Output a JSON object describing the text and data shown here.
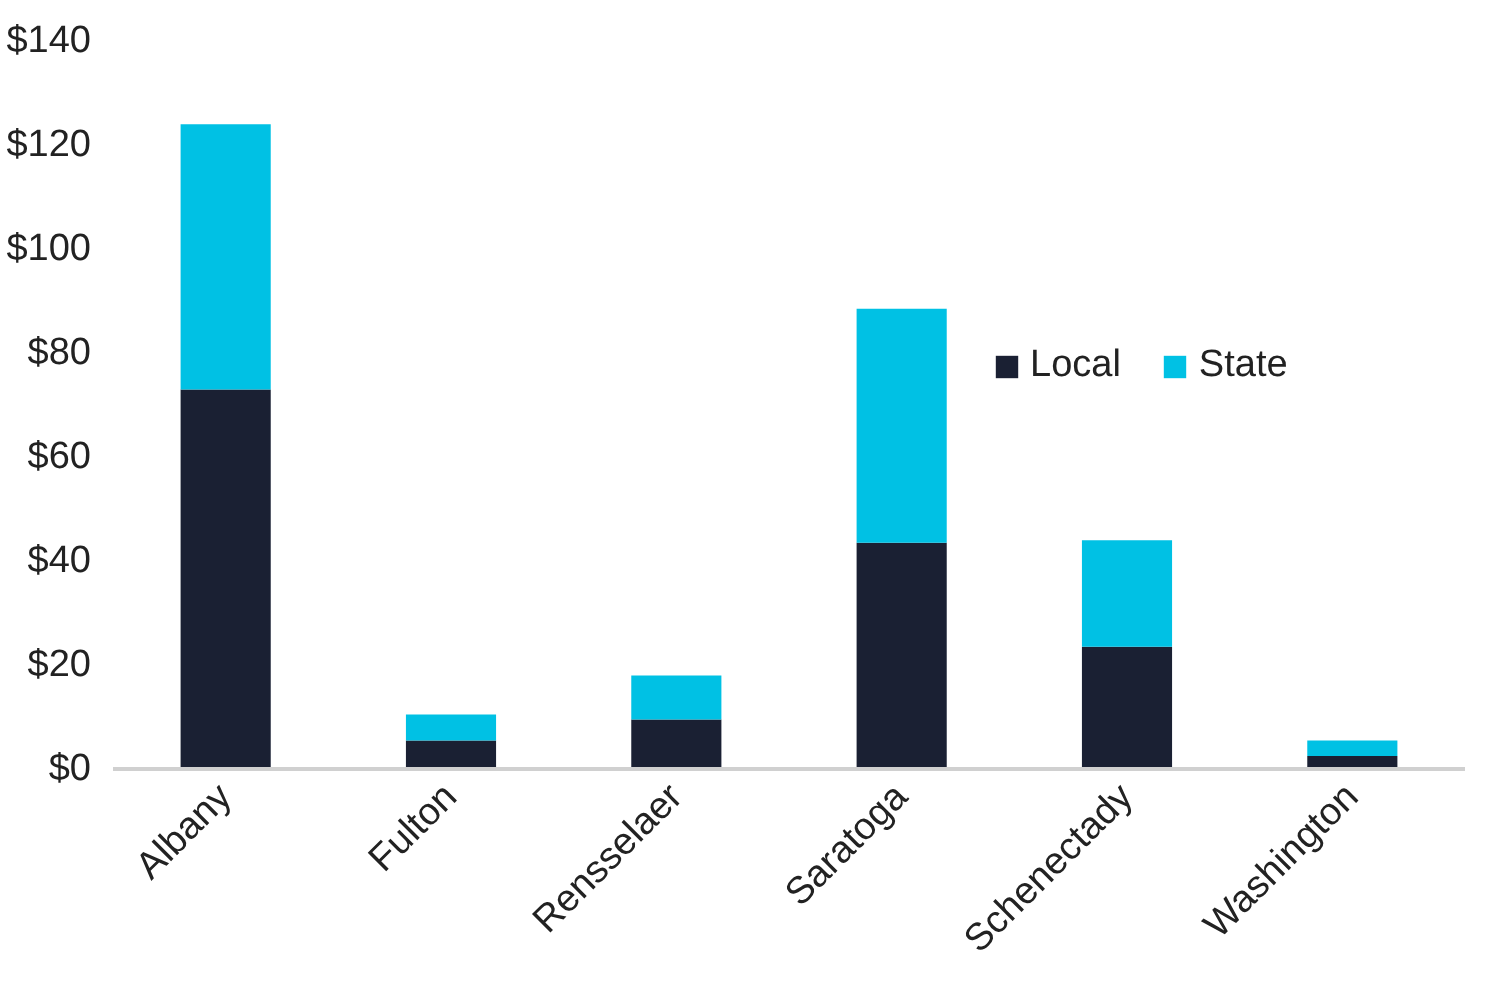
{
  "chart_data": {
    "type": "bar",
    "stacked": true,
    "categories": [
      "Albany",
      "Fulton",
      "Rensselaer",
      "Saratoga",
      "Schenectady",
      "Washington"
    ],
    "series": [
      {
        "name": "Local",
        "color": "#1a2033",
        "values": [
          73,
          5.5,
          9.5,
          43.5,
          23.5,
          2.5
        ]
      },
      {
        "name": "State",
        "color": "#00c1e4",
        "values": [
          51,
          5,
          8.5,
          45,
          20.5,
          3
        ]
      }
    ],
    "ylim": [
      0,
      140
    ],
    "yticks": [
      {
        "value": 0,
        "label": "$0"
      },
      {
        "value": 20,
        "label": "$20"
      },
      {
        "value": 40,
        "label": "$40"
      },
      {
        "value": 60,
        "label": "$60"
      },
      {
        "value": 80,
        "label": "$80"
      },
      {
        "value": 100,
        "label": "$100"
      },
      {
        "value": 120,
        "label": "$120"
      },
      {
        "value": 140,
        "label": "$140"
      }
    ],
    "grid": false,
    "legend": "top right"
  }
}
